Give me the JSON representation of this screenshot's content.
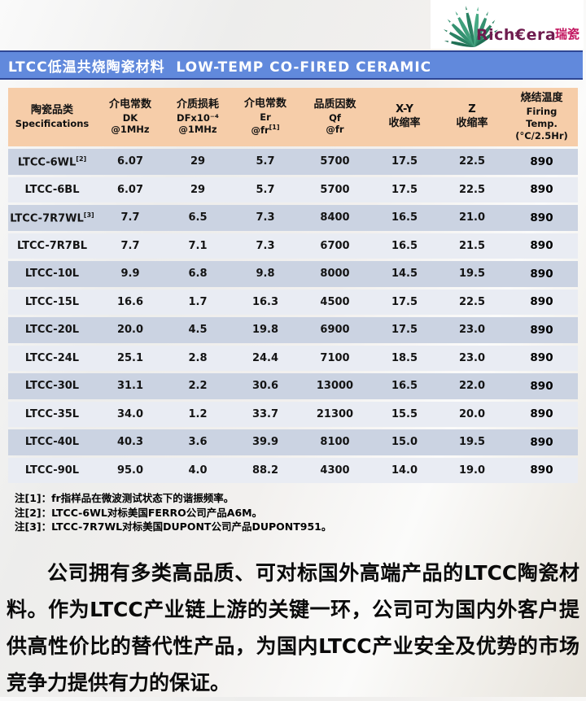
{
  "logo": {
    "brand": "Rich€era",
    "brand_cn": "瑞瓷",
    "brand_color": "#6e1b4e",
    "brand_cn_color": "#c2155f",
    "fan_color": "#2f8a66"
  },
  "title_bar": {
    "text": "LTCC低温共烧陶瓷材料  LOW-TEMP CO-FIRED CERAMIC",
    "background": "#6189dc"
  },
  "table": {
    "columns": [
      {
        "line1": "陶瓷品类",
        "line2": "Specifications"
      },
      {
        "line1": "介电常数",
        "line2": "DK",
        "line3": "@1MHz"
      },
      {
        "line1": "介质损耗",
        "line2": "DFx10⁻⁴",
        "line3": "@1MHz"
      },
      {
        "line1": "介电常数",
        "line2": "Er",
        "line3": "@fr",
        "sup": "[1]"
      },
      {
        "line1": "品质因数",
        "line2": "Qf",
        "line3": "@fr"
      },
      {
        "line1": "X-Y",
        "line2": "收缩率"
      },
      {
        "line1": "Z",
        "line2": "收缩率"
      },
      {
        "line1": "烧结温度",
        "line2": "Firing",
        "line3": "Temp.",
        "line4": "(°C/2.5Hr)"
      }
    ],
    "rows": [
      {
        "name": "LTCC-6WL",
        "sup": "[2]",
        "dk": "6.07",
        "df": "29",
        "er": "5.7",
        "qf": "5700",
        "xy": "17.5",
        "z": "22.5",
        "firing": "890"
      },
      {
        "name": "LTCC-6BL",
        "sup": "",
        "dk": "6.07",
        "df": "29",
        "er": "5.7",
        "qf": "5700",
        "xy": "17.5",
        "z": "22.5",
        "firing": "890"
      },
      {
        "name": "LTCC-7R7WL",
        "sup": "[3]",
        "dk": "7.7",
        "df": "6.5",
        "er": "7.3",
        "qf": "8400",
        "xy": "16.5",
        "z": "21.0",
        "firing": "890"
      },
      {
        "name": "LTCC-7R7BL",
        "sup": "",
        "dk": "7.7",
        "df": "7.1",
        "er": "7.3",
        "qf": "6700",
        "xy": "16.5",
        "z": "21.5",
        "firing": "890"
      },
      {
        "name": "LTCC-10L",
        "sup": "",
        "dk": "9.9",
        "df": "6.8",
        "er": "9.8",
        "qf": "8000",
        "xy": "14.5",
        "z": "19.5",
        "firing": "890"
      },
      {
        "name": "LTCC-15L",
        "sup": "",
        "dk": "16.6",
        "df": "1.7",
        "er": "16.3",
        "qf": "4500",
        "xy": "17.5",
        "z": "22.5",
        "firing": "890"
      },
      {
        "name": "LTCC-20L",
        "sup": "",
        "dk": "20.0",
        "df": "4.5",
        "er": "19.8",
        "qf": "6900",
        "xy": "17.5",
        "z": "23.0",
        "firing": "890"
      },
      {
        "name": "LTCC-24L",
        "sup": "",
        "dk": "25.1",
        "df": "2.8",
        "er": "24.4",
        "qf": "7100",
        "xy": "18.5",
        "z": "23.0",
        "firing": "890"
      },
      {
        "name": "LTCC-30L",
        "sup": "",
        "dk": "31.1",
        "df": "2.2",
        "er": "30.6",
        "qf": "13000",
        "xy": "16.5",
        "z": "22.0",
        "firing": "890"
      },
      {
        "name": "LTCC-35L",
        "sup": "",
        "dk": "34.0",
        "df": "1.2",
        "er": "33.7",
        "qf": "21300",
        "xy": "15.5",
        "z": "20.0",
        "firing": "890"
      },
      {
        "name": "LTCC-40L",
        "sup": "",
        "dk": "40.3",
        "df": "3.6",
        "er": "39.9",
        "qf": "8100",
        "xy": "15.0",
        "z": "19.5",
        "firing": "890"
      },
      {
        "name": "LTCC-90L",
        "sup": "",
        "dk": "95.0",
        "df": "4.0",
        "er": "88.2",
        "qf": "4300",
        "xy": "14.0",
        "z": "19.0",
        "firing": "890"
      }
    ],
    "header_background": "#f6cda9",
    "row_dark": "#cbd3e2",
    "row_light": "#e9ecf3"
  },
  "notes": [
    "注[1]：fr指样品在微波测试状态下的谐振频率。",
    "注[2]：LTCC-6WL对标美国FERRO公司产品A6M。",
    "注[3]：LTCC-7R7WL对标美国DUPONT公司产品DUPONT951。"
  ],
  "paragraph": "公司拥有多类高品质、可对标国外高端产品的LTCC陶瓷材料。作为LTCC产业链上游的关键一环，公司可为国内外客户提供高性价比的替代性产品，为国内LTCC产业安全及优势的市场竞争力提供有力的保证。"
}
